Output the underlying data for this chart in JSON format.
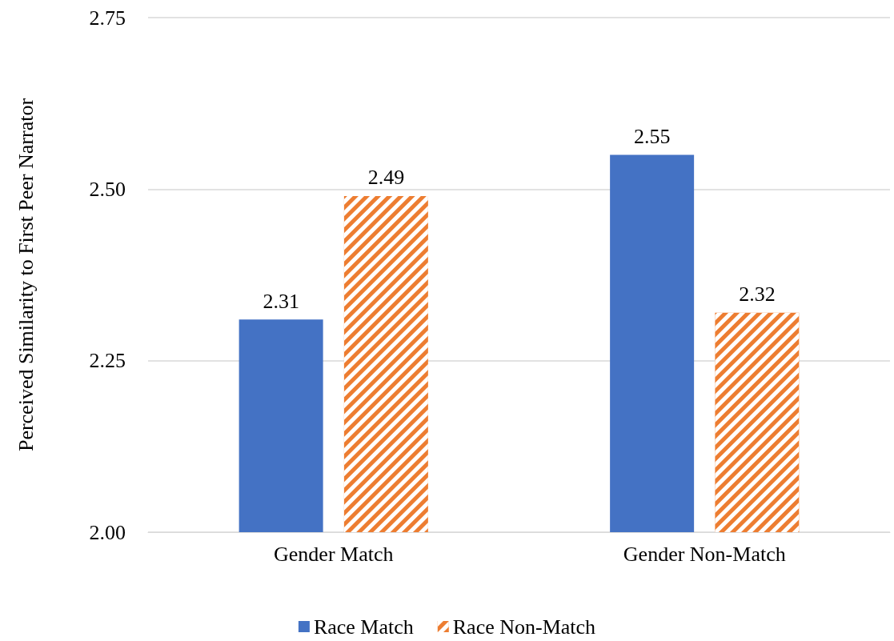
{
  "chart_data": {
    "type": "bar",
    "ylabel": "Perceived Similarity to First Peer Narrator",
    "categories": [
      "Gender Match",
      "Gender Non-Match"
    ],
    "series": [
      {
        "name": "Race Match",
        "color": "#4472c4",
        "values": [
          2.31,
          2.55
        ]
      },
      {
        "name": "Race Non-Match",
        "color": "#ed7d31",
        "values": [
          2.49,
          2.32
        ]
      }
    ],
    "ylim": [
      2,
      2.75
    ],
    "yticks": [
      {
        "value": 2,
        "label": "2.00"
      },
      {
        "value": 2.25,
        "label": "2.25"
      },
      {
        "value": 2.5,
        "label": "2.50"
      },
      {
        "value": 2.75,
        "label": "2.75"
      }
    ],
    "grid": "y",
    "legend": "bottom",
    "data_labels": true
  }
}
